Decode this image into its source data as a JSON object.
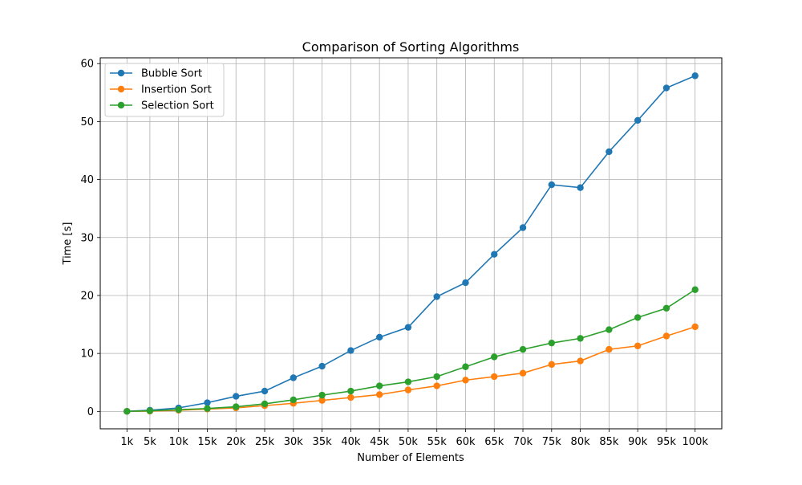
{
  "chart_data": {
    "type": "line",
    "title": "Comparison of Sorting Algorithms",
    "xlabel": "Number of Elements",
    "ylabel": "Time [s]",
    "x_categories": [
      "1k",
      "5k",
      "10k",
      "15k",
      "20k",
      "25k",
      "30k",
      "35k",
      "40k",
      "45k",
      "50k",
      "55k",
      "60k",
      "65k",
      "70k",
      "75k",
      "80k",
      "85k",
      "90k",
      "95k",
      "100k"
    ],
    "x_values": [
      1000,
      5000,
      10000,
      15000,
      20000,
      25000,
      30000,
      35000,
      40000,
      45000,
      50000,
      55000,
      60000,
      65000,
      70000,
      75000,
      80000,
      85000,
      90000,
      95000,
      100000
    ],
    "ylim": [
      -3,
      61
    ],
    "yticks": [
      0,
      10,
      20,
      30,
      40,
      50,
      60
    ],
    "grid": true,
    "legend_position": "top-left",
    "series": [
      {
        "name": "Bubble Sort",
        "color": "#1f77b4",
        "values": [
          0.02,
          0.2,
          0.6,
          1.5,
          2.6,
          3.5,
          5.8,
          7.8,
          10.5,
          12.8,
          14.5,
          19.8,
          22.2,
          27.1,
          31.7,
          39.1,
          38.6,
          44.8,
          50.2,
          55.8,
          57.9
        ]
      },
      {
        "name": "Insertion Sort",
        "color": "#ff7f0e",
        "values": [
          0.01,
          0.05,
          0.2,
          0.4,
          0.6,
          1.0,
          1.4,
          1.9,
          2.4,
          2.9,
          3.7,
          4.4,
          5.4,
          6.0,
          6.6,
          8.1,
          8.7,
          10.7,
          11.3,
          13.0,
          14.6
        ]
      },
      {
        "name": "Selection Sort",
        "color": "#2ca02c",
        "values": [
          0.01,
          0.1,
          0.3,
          0.5,
          0.8,
          1.3,
          2.0,
          2.8,
          3.5,
          4.4,
          5.1,
          6.0,
          7.7,
          9.4,
          10.7,
          11.8,
          12.6,
          14.1,
          16.2,
          17.8,
          21.0
        ]
      }
    ]
  }
}
